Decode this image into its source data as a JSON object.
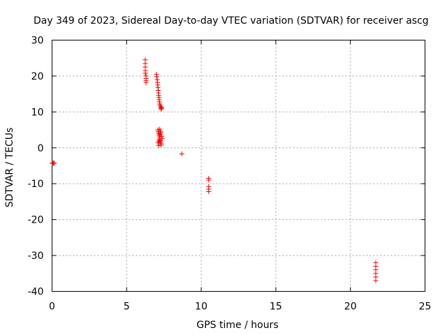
{
  "chart_data": {
    "type": "scatter",
    "title": "Day 349 of 2023, Sidereal Day-to-day VTEC variation (SDTVAR) for receiver ascg",
    "xlabel": "GPS time / hours",
    "ylabel": "SDTVAR / TECUs",
    "xlim": [
      0,
      25
    ],
    "ylim": [
      -40,
      30
    ],
    "xticks": [
      0,
      5,
      10,
      15,
      20,
      25
    ],
    "yticks": [
      -40,
      -30,
      -20,
      -10,
      0,
      10,
      20,
      30
    ],
    "grid": true,
    "marker": "+",
    "color": "#ff0000",
    "series": [
      {
        "name": "SDTVAR",
        "points": [
          [
            0.0,
            -4.3
          ],
          [
            0.05,
            -4.3
          ],
          [
            0.1,
            -4.2
          ],
          [
            0.15,
            -4.3
          ],
          [
            6.25,
            24.5
          ],
          [
            6.25,
            23.5
          ],
          [
            6.25,
            22.5
          ],
          [
            6.25,
            21.5
          ],
          [
            6.25,
            20.8
          ],
          [
            6.3,
            20.0
          ],
          [
            6.3,
            19.3
          ],
          [
            6.3,
            18.7
          ],
          [
            6.3,
            18.2
          ],
          [
            7.0,
            20.5
          ],
          [
            7.02,
            19.8
          ],
          [
            7.05,
            19.0
          ],
          [
            7.07,
            18.2
          ],
          [
            7.08,
            17.5
          ],
          [
            7.1,
            16.8
          ],
          [
            7.12,
            16.0
          ],
          [
            7.13,
            15.3
          ],
          [
            7.15,
            14.6
          ],
          [
            7.17,
            14.0
          ],
          [
            7.18,
            13.4
          ],
          [
            7.2,
            12.8
          ],
          [
            7.22,
            12.2
          ],
          [
            7.25,
            11.8
          ],
          [
            7.28,
            11.4
          ],
          [
            7.3,
            11.0
          ],
          [
            7.32,
            10.8
          ],
          [
            7.35,
            11.2
          ],
          [
            7.1,
            5.0
          ],
          [
            7.12,
            4.5
          ],
          [
            7.15,
            4.0
          ],
          [
            7.17,
            3.5
          ],
          [
            7.2,
            3.0
          ],
          [
            7.22,
            2.5
          ],
          [
            7.25,
            2.0
          ],
          [
            7.28,
            1.6
          ],
          [
            7.3,
            1.2
          ],
          [
            7.32,
            0.8
          ],
          [
            7.18,
            1.8
          ],
          [
            7.2,
            2.2
          ],
          [
            7.25,
            3.8
          ],
          [
            7.3,
            4.2
          ],
          [
            7.35,
            3.2
          ],
          [
            7.38,
            2.6
          ],
          [
            7.1,
            1.4
          ],
          [
            7.15,
            0.6
          ],
          [
            7.28,
            4.6
          ],
          [
            7.22,
            5.2
          ],
          [
            8.7,
            -1.7
          ],
          [
            10.5,
            -8.5
          ],
          [
            10.5,
            -9.0
          ],
          [
            10.5,
            -10.8
          ],
          [
            10.5,
            -11.5
          ],
          [
            10.5,
            -12.2
          ],
          [
            21.7,
            -32.0
          ],
          [
            21.7,
            -33.0
          ],
          [
            21.7,
            -34.0
          ],
          [
            21.7,
            -35.0
          ],
          [
            21.7,
            -36.0
          ],
          [
            21.7,
            -37.0
          ]
        ]
      }
    ]
  }
}
